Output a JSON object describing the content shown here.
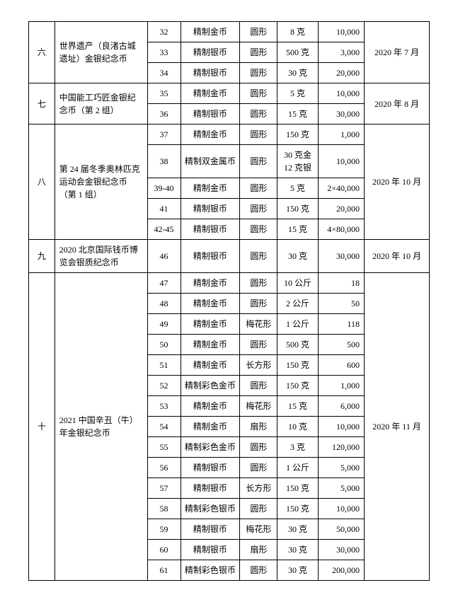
{
  "table": {
    "border_color": "#000000",
    "background_color": "#ffffff",
    "font_size": 12,
    "groups": [
      {
        "idx": "六",
        "name": "世界遗产（良渚古城遗址）金银纪念币",
        "date": "2020 年 7 月",
        "rows": [
          {
            "no": "32",
            "type": "精制金币",
            "shape": "圆形",
            "spec": "8 克",
            "qty": "10,000"
          },
          {
            "no": "33",
            "type": "精制银币",
            "shape": "圆形",
            "spec": "500 克",
            "qty": "3,000"
          },
          {
            "no": "34",
            "type": "精制银币",
            "shape": "圆形",
            "spec": "30 克",
            "qty": "20,000"
          }
        ]
      },
      {
        "idx": "七",
        "name": "中国能工巧匠金银纪念币（第 2 组）",
        "date": "2020 年 8 月",
        "rows": [
          {
            "no": "35",
            "type": "精制金币",
            "shape": "圆形",
            "spec": "5 克",
            "qty": "10,000"
          },
          {
            "no": "36",
            "type": "精制银币",
            "shape": "圆形",
            "spec": "15 克",
            "qty": "30,000"
          }
        ]
      },
      {
        "idx": "八",
        "name": "第 24 届冬季奥林匹克运动会金银纪念币（第 1 组）",
        "date": "2020 年 10 月",
        "rows": [
          {
            "no": "37",
            "type": "精制金币",
            "shape": "圆形",
            "spec": "150 克",
            "qty": "1,000"
          },
          {
            "no": "38",
            "type": "精制双金属币",
            "shape": "圆形",
            "spec": "30 克金\n12 克银",
            "qty": "10,000"
          },
          {
            "no": "39-40",
            "type": "精制金币",
            "shape": "圆形",
            "spec": "5 克",
            "qty": "2×40,000"
          },
          {
            "no": "41",
            "type": "精制银币",
            "shape": "圆形",
            "spec": "150 克",
            "qty": "20,000"
          },
          {
            "no": "42-45",
            "type": "精制银币",
            "shape": "圆形",
            "spec": "15 克",
            "qty": "4×80,000"
          }
        ]
      },
      {
        "idx": "九",
        "name": "2020 北京国际钱币博览会银质纪念币",
        "date": "2020 年 10 月",
        "rows": [
          {
            "no": "46",
            "type": "精制银币",
            "shape": "圆形",
            "spec": "30 克",
            "qty": "30,000"
          }
        ]
      },
      {
        "idx": "十",
        "name": "2021 中国辛丑（牛）年金银纪念币",
        "date": "2020 年 11 月",
        "rows": [
          {
            "no": "47",
            "type": "精制金币",
            "shape": "圆形",
            "spec": "10 公斤",
            "qty": "18"
          },
          {
            "no": "48",
            "type": "精制金币",
            "shape": "圆形",
            "spec": "2 公斤",
            "qty": "50"
          },
          {
            "no": "49",
            "type": "精制金币",
            "shape": "梅花形",
            "spec": "1 公斤",
            "qty": "118"
          },
          {
            "no": "50",
            "type": "精制金币",
            "shape": "圆形",
            "spec": "500 克",
            "qty": "500"
          },
          {
            "no": "51",
            "type": "精制金币",
            "shape": "长方形",
            "spec": "150 克",
            "qty": "600"
          },
          {
            "no": "52",
            "type": "精制彩色金币",
            "shape": "圆形",
            "spec": "150 克",
            "qty": "1,000"
          },
          {
            "no": "53",
            "type": "精制金币",
            "shape": "梅花形",
            "spec": "15 克",
            "qty": "6,000"
          },
          {
            "no": "54",
            "type": "精制金币",
            "shape": "扇形",
            "spec": "10 克",
            "qty": "10,000"
          },
          {
            "no": "55",
            "type": "精制彩色金币",
            "shape": "圆形",
            "spec": "3 克",
            "qty": "120,000"
          },
          {
            "no": "56",
            "type": "精制银币",
            "shape": "圆形",
            "spec": "1 公斤",
            "qty": "5,000"
          },
          {
            "no": "57",
            "type": "精制银币",
            "shape": "长方形",
            "spec": "150 克",
            "qty": "5,000"
          },
          {
            "no": "58",
            "type": "精制彩色银币",
            "shape": "圆形",
            "spec": "150 克",
            "qty": "10,000"
          },
          {
            "no": "59",
            "type": "精制银币",
            "shape": "梅花形",
            "spec": "30 克",
            "qty": "50,000"
          },
          {
            "no": "60",
            "type": "精制银币",
            "shape": "扇形",
            "spec": "30 克",
            "qty": "30,000"
          },
          {
            "no": "61",
            "type": "精制彩色银币",
            "shape": "圆形",
            "spec": "30 克",
            "qty": "200,000"
          }
        ]
      }
    ]
  }
}
